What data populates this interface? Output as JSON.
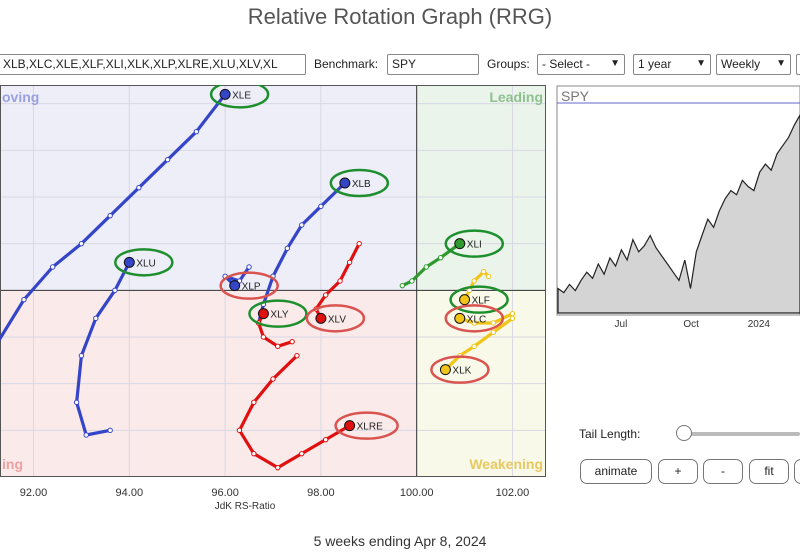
{
  "header": {
    "title": "Relative Rotation Graph (RRG)"
  },
  "controls": {
    "symbols_value": "XLB,XLC,XLE,XLF,XLI,XLK,XLP,XLRE,XLU,XLV,XL",
    "benchmark_label": "Benchmark:",
    "benchmark_value": "SPY",
    "groups_label": "Groups:",
    "groups_value": "- Select -",
    "period_value": "1 year",
    "frequency_value": "Weekly"
  },
  "chart_data": {
    "type": "scatter",
    "title": "",
    "xlabel": "JdK RS-Ratio",
    "ylabel": "",
    "xlim": [
      91.3,
      102.7
    ],
    "ylim": [
      96.0,
      104.4
    ],
    "xticks": [
      "92.00",
      "94.00",
      "96.00",
      "98.00",
      "100.00",
      "102.00"
    ],
    "xtick_values": [
      92,
      94,
      96,
      98,
      100,
      102
    ],
    "center": [
      100,
      100
    ],
    "quadrants": {
      "top_left": "Improving",
      "top_right": "Leading",
      "bottom_left": "Lagging",
      "bottom_right": "Weakening"
    },
    "quadrant_labels_visible": {
      "top_left": "oving",
      "top_right": "Leading",
      "bottom_left": "ing",
      "bottom_right": "Weakening"
    },
    "colors": {
      "improving": "#3545c8",
      "leading": "#2e9a2e",
      "lagging": "#e01010",
      "weakening": "#f0c419",
      "improving_bg": "#eeeef9",
      "leading_bg": "#eaf4ea",
      "lagging_bg": "#faeaea",
      "weakening_bg": "#f9f9ea",
      "highlight_green": "#1e8f2e",
      "highlight_red": "#d9534f"
    },
    "series": [
      {
        "name": "XLE",
        "color": "#3545c8",
        "highlight": "green",
        "x": [
          91.2,
          91.8,
          92.4,
          93.0,
          93.6,
          94.2,
          94.8,
          95.4,
          96.0
        ],
        "y": [
          98.8,
          99.8,
          100.5,
          101.0,
          101.6,
          102.2,
          102.8,
          103.4,
          104.2
        ]
      },
      {
        "name": "XLB",
        "color": "#3545c8",
        "highlight": "green",
        "x": [
          96.7,
          96.8,
          97.0,
          97.3,
          97.6,
          98.0,
          98.5
        ],
        "y": [
          99.3,
          99.7,
          100.3,
          100.9,
          101.4,
          101.8,
          102.3
        ]
      },
      {
        "name": "XLU",
        "color": "#3545c8",
        "highlight": "green",
        "x": [
          93.6,
          93.1,
          92.9,
          93.0,
          93.3,
          93.7,
          94.0
        ],
        "y": [
          97.0,
          96.9,
          97.6,
          98.6,
          99.4,
          100.0,
          100.6
        ]
      },
      {
        "name": "XLP",
        "color": "#3545c8",
        "highlight": "red",
        "x": [
          96.5,
          96.3,
          96.0,
          96.2
        ],
        "y": [
          100.5,
          100.2,
          100.3,
          100.1
        ]
      },
      {
        "name": "XLY",
        "color": "#e01010",
        "highlight": "green",
        "x": [
          97.4,
          97.1,
          96.8,
          96.7,
          96.8
        ],
        "y": [
          98.9,
          98.8,
          99.0,
          99.3,
          99.5
        ]
      },
      {
        "name": "XLV",
        "color": "#e01010",
        "highlight": "red",
        "x": [
          98.8,
          98.6,
          98.4,
          98.1,
          97.9,
          98.0
        ],
        "y": [
          101.0,
          100.6,
          100.2,
          99.9,
          99.6,
          99.4
        ]
      },
      {
        "name": "XLRE",
        "color": "#e01010",
        "highlight": "red",
        "x": [
          97.5,
          97.0,
          96.6,
          96.3,
          96.6,
          97.1,
          97.6,
          98.1,
          98.6
        ],
        "y": [
          98.6,
          98.1,
          97.6,
          97.0,
          96.5,
          96.2,
          96.5,
          96.8,
          97.1
        ]
      },
      {
        "name": "XLI",
        "color": "#2e9a2e",
        "highlight": "green",
        "x": [
          99.7,
          99.9,
          100.2,
          100.5,
          100.9
        ],
        "y": [
          100.1,
          100.2,
          100.5,
          100.7,
          101.0
        ]
      },
      {
        "name": "XLF",
        "color": "#f0c419",
        "highlight": "green",
        "x": [
          101.5,
          101.4,
          101.2,
          101.1,
          101.0
        ],
        "y": [
          100.3,
          100.4,
          100.2,
          100.0,
          99.8
        ]
      },
      {
        "name": "XLC",
        "color": "#f0c419",
        "highlight": "red",
        "x": [
          102.0,
          101.6,
          101.2,
          100.9
        ],
        "y": [
          99.5,
          99.3,
          99.3,
          99.4
        ]
      },
      {
        "name": "XLK",
        "color": "#f0c419",
        "highlight": "red",
        "x": [
          102.0,
          101.6,
          101.2,
          100.9,
          100.6
        ],
        "y": [
          99.4,
          99.1,
          98.8,
          98.6,
          98.3
        ]
      }
    ],
    "benchmark_chart": {
      "type": "area",
      "title": "SPY",
      "xtick_labels": [
        "Jul",
        "Oct",
        "2024"
      ],
      "xtick_positions": [
        0.26,
        0.55,
        0.83
      ],
      "values": [
        0.12,
        0.1,
        0.14,
        0.11,
        0.16,
        0.2,
        0.17,
        0.24,
        0.19,
        0.27,
        0.23,
        0.31,
        0.26,
        0.36,
        0.3,
        0.33,
        0.38,
        0.32,
        0.28,
        0.24,
        0.2,
        0.16,
        0.26,
        0.12,
        0.3,
        0.38,
        0.46,
        0.42,
        0.5,
        0.56,
        0.6,
        0.58,
        0.65,
        0.62,
        0.6,
        0.69,
        0.73,
        0.7,
        0.78,
        0.82,
        0.86,
        0.92,
        0.97
      ]
    }
  },
  "tail": {
    "label": "Tail Length:"
  },
  "buttons": {
    "animate": "animate",
    "plus": "+",
    "minus": "-",
    "fit": "fit"
  },
  "footer": {
    "text": "5 weeks ending Apr 8, 2024"
  }
}
